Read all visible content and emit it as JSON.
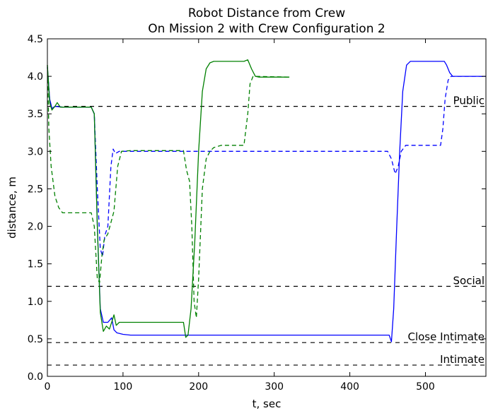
{
  "chart_data": {
    "type": "line",
    "title": "Robot Distance from Crew",
    "subtitle": "On Mission 2 with Crew Configuration 2",
    "xlabel": "t, sec",
    "ylabel": "distance, m",
    "xlim": [
      0,
      580
    ],
    "ylim": [
      0,
      4.5
    ],
    "xticks": [
      0,
      100,
      200,
      300,
      400,
      500
    ],
    "yticks": [
      "0.0",
      "0.5",
      "1.0",
      "1.5",
      "2.0",
      "2.5",
      "3.0",
      "3.5",
      "4.0",
      "4.5"
    ],
    "grid": false,
    "thresholds": [
      {
        "label": "Public",
        "y": 3.6
      },
      {
        "label": "Social",
        "y": 1.2
      },
      {
        "label": "Close Intimate",
        "y": 0.45
      },
      {
        "label": "Intimate",
        "y": 0.15
      }
    ],
    "series": [
      {
        "color": "#0000ff",
        "style": "solid",
        "points": [
          [
            0,
            4.12
          ],
          [
            3,
            3.7
          ],
          [
            6,
            3.57
          ],
          [
            10,
            3.6
          ],
          [
            20,
            3.59
          ],
          [
            58,
            3.59
          ],
          [
            62,
            3.5
          ],
          [
            66,
            2.0
          ],
          [
            70,
            0.9
          ],
          [
            74,
            0.72
          ],
          [
            80,
            0.72
          ],
          [
            85,
            0.78
          ],
          [
            88,
            0.62
          ],
          [
            92,
            0.58
          ],
          [
            100,
            0.56
          ],
          [
            110,
            0.55
          ],
          [
            200,
            0.55
          ],
          [
            300,
            0.55
          ],
          [
            400,
            0.55
          ],
          [
            452,
            0.55
          ],
          [
            455,
            0.46
          ],
          [
            458,
            0.9
          ],
          [
            462,
            2.0
          ],
          [
            466,
            3.0
          ],
          [
            470,
            3.8
          ],
          [
            475,
            4.15
          ],
          [
            480,
            4.2
          ],
          [
            490,
            4.2
          ],
          [
            520,
            4.2
          ],
          [
            525,
            4.2
          ],
          [
            528,
            4.15
          ],
          [
            532,
            4.05
          ],
          [
            536,
            4.0
          ],
          [
            560,
            4.0
          ],
          [
            580,
            4.0
          ]
        ]
      },
      {
        "color": "#0000ff",
        "style": "dashed",
        "points": [
          [
            0,
            4.12
          ],
          [
            3,
            3.7
          ],
          [
            6,
            3.57
          ],
          [
            10,
            3.6
          ],
          [
            20,
            3.59
          ],
          [
            58,
            3.59
          ],
          [
            62,
            3.5
          ],
          [
            66,
            2.5
          ],
          [
            70,
            1.7
          ],
          [
            73,
            1.6
          ],
          [
            76,
            1.88
          ],
          [
            80,
            2.0
          ],
          [
            84,
            2.8
          ],
          [
            87,
            3.03
          ],
          [
            90,
            2.97
          ],
          [
            95,
            3.0
          ],
          [
            100,
            3.0
          ],
          [
            200,
            3.0
          ],
          [
            300,
            3.0
          ],
          [
            400,
            3.0
          ],
          [
            450,
            3.0
          ],
          [
            455,
            2.9
          ],
          [
            460,
            2.7
          ],
          [
            464,
            2.8
          ],
          [
            468,
            3.0
          ],
          [
            474,
            3.08
          ],
          [
            500,
            3.08
          ],
          [
            520,
            3.08
          ],
          [
            523,
            3.3
          ],
          [
            526,
            3.7
          ],
          [
            530,
            3.95
          ],
          [
            534,
            4.0
          ],
          [
            580,
            4.0
          ]
        ]
      },
      {
        "color": "#008000",
        "style": "solid",
        "points": [
          [
            0,
            4.15
          ],
          [
            3,
            3.65
          ],
          [
            6,
            3.55
          ],
          [
            10,
            3.6
          ],
          [
            13,
            3.65
          ],
          [
            17,
            3.59
          ],
          [
            25,
            3.59
          ],
          [
            58,
            3.59
          ],
          [
            62,
            3.5
          ],
          [
            66,
            2.0
          ],
          [
            70,
            0.85
          ],
          [
            74,
            0.6
          ],
          [
            78,
            0.67
          ],
          [
            82,
            0.63
          ],
          [
            86,
            0.75
          ],
          [
            88,
            0.82
          ],
          [
            91,
            0.68
          ],
          [
            95,
            0.72
          ],
          [
            100,
            0.72
          ],
          [
            150,
            0.72
          ],
          [
            180,
            0.72
          ],
          [
            183,
            0.52
          ],
          [
            186,
            0.55
          ],
          [
            190,
            0.9
          ],
          [
            195,
            1.8
          ],
          [
            200,
            3.0
          ],
          [
            205,
            3.8
          ],
          [
            210,
            4.1
          ],
          [
            215,
            4.18
          ],
          [
            220,
            4.2
          ],
          [
            240,
            4.2
          ],
          [
            260,
            4.2
          ],
          [
            265,
            4.22
          ],
          [
            270,
            4.1
          ],
          [
            275,
            4.0
          ],
          [
            280,
            3.99
          ],
          [
            320,
            3.99
          ]
        ]
      },
      {
        "color": "#008000",
        "style": "dashed",
        "points": [
          [
            0,
            4.15
          ],
          [
            2,
            3.3
          ],
          [
            5,
            2.8
          ],
          [
            10,
            2.4
          ],
          [
            15,
            2.25
          ],
          [
            20,
            2.18
          ],
          [
            30,
            2.18
          ],
          [
            58,
            2.18
          ],
          [
            62,
            2.0
          ],
          [
            66,
            1.3
          ],
          [
            69,
            1.25
          ],
          [
            72,
            1.6
          ],
          [
            75,
            1.82
          ],
          [
            80,
            1.9
          ],
          [
            88,
            2.2
          ],
          [
            93,
            2.8
          ],
          [
            98,
            3.0
          ],
          [
            110,
            3.01
          ],
          [
            180,
            3.01
          ],
          [
            184,
            2.75
          ],
          [
            188,
            2.6
          ],
          [
            191,
            2.0
          ],
          [
            194,
            1.0
          ],
          [
            197,
            0.78
          ],
          [
            200,
            1.3
          ],
          [
            205,
            2.5
          ],
          [
            210,
            2.9
          ],
          [
            215,
            3.0
          ],
          [
            220,
            3.05
          ],
          [
            230,
            3.08
          ],
          [
            260,
            3.08
          ],
          [
            265,
            3.5
          ],
          [
            268,
            3.9
          ],
          [
            272,
            4.0
          ],
          [
            320,
            3.99
          ]
        ]
      }
    ]
  }
}
